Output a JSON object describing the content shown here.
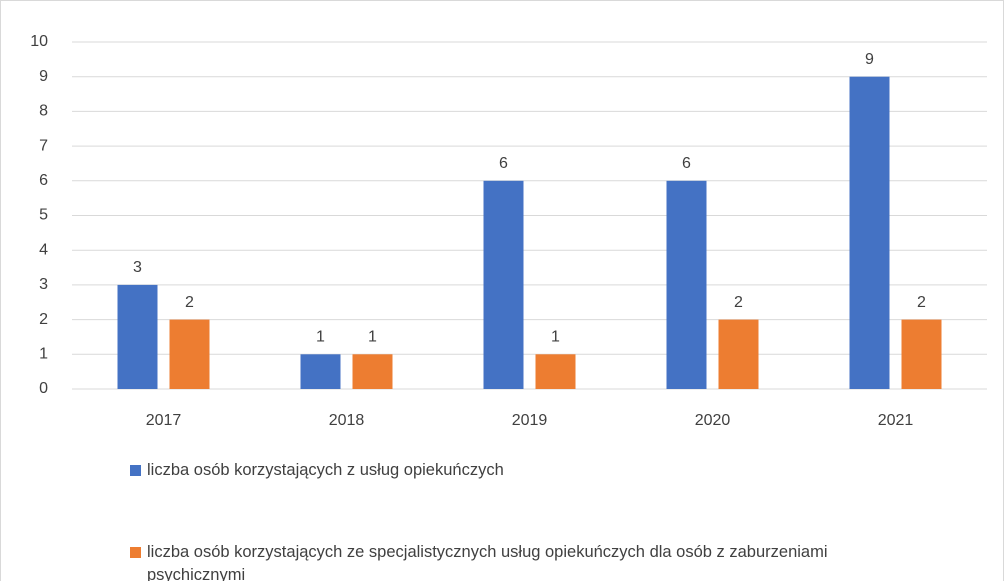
{
  "chart_data": {
    "type": "bar",
    "categories": [
      "2017",
      "2018",
      "2019",
      "2020",
      "2021"
    ],
    "series": [
      {
        "name": "liczba osób korzystających z usług opiekuńczych",
        "color": "#4472c4",
        "values": [
          3,
          1,
          6,
          6,
          9
        ]
      },
      {
        "name": "liczba osób korzystających ze specjalistycznych usług opiekuńczych dla osób z zaburzeniami psychicznymi",
        "color": "#ed7d31",
        "values": [
          2,
          1,
          1,
          2,
          2
        ]
      }
    ],
    "ylim": [
      0,
      10
    ],
    "yticks": [
      0,
      1,
      2,
      3,
      4,
      5,
      6,
      7,
      8,
      9,
      10
    ],
    "grid": true,
    "legend": "bottom"
  }
}
